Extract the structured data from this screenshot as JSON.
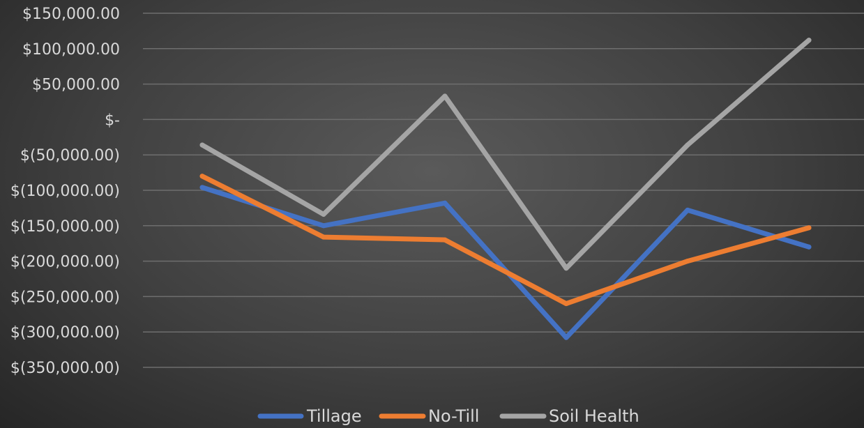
{
  "chart_data": {
    "type": "line",
    "categories": [
      "",
      "",
      "",
      "",
      "",
      ""
    ],
    "y_ticks": [
      {
        "value": 150000,
        "label": "$150,000.00"
      },
      {
        "value": 100000,
        "label": "$100,000.00"
      },
      {
        "value": 50000,
        "label": "$50,000.00"
      },
      {
        "value": 0,
        "label": "$-"
      },
      {
        "value": -50000,
        "label": "$(50,000.00)"
      },
      {
        "value": -100000,
        "label": "$(100,000.00)"
      },
      {
        "value": -150000,
        "label": "$(150,000.00)"
      },
      {
        "value": -200000,
        "label": "$(200,000.00)"
      },
      {
        "value": -250000,
        "label": "$(250,000.00)"
      },
      {
        "value": -300000,
        "label": "$(300,000.00)"
      },
      {
        "value": -350000,
        "label": "$(350,000.00)"
      }
    ],
    "ylim": [
      -350000,
      150000
    ],
    "grid": true,
    "legend_position": "bottom",
    "series": [
      {
        "name": "Tillage",
        "color": "#4472c4",
        "values": [
          -96000,
          -150000,
          -118000,
          -308000,
          -128000,
          -180000
        ]
      },
      {
        "name": "No-Till",
        "color": "#ed7d31",
        "values": [
          -80000,
          -166000,
          -170000,
          -260000,
          -200000,
          -153000
        ]
      },
      {
        "name": "Soil Health",
        "color": "#a5a5a5",
        "values": [
          -36000,
          -134000,
          33000,
          -210000,
          -36000,
          112000
        ]
      }
    ]
  }
}
